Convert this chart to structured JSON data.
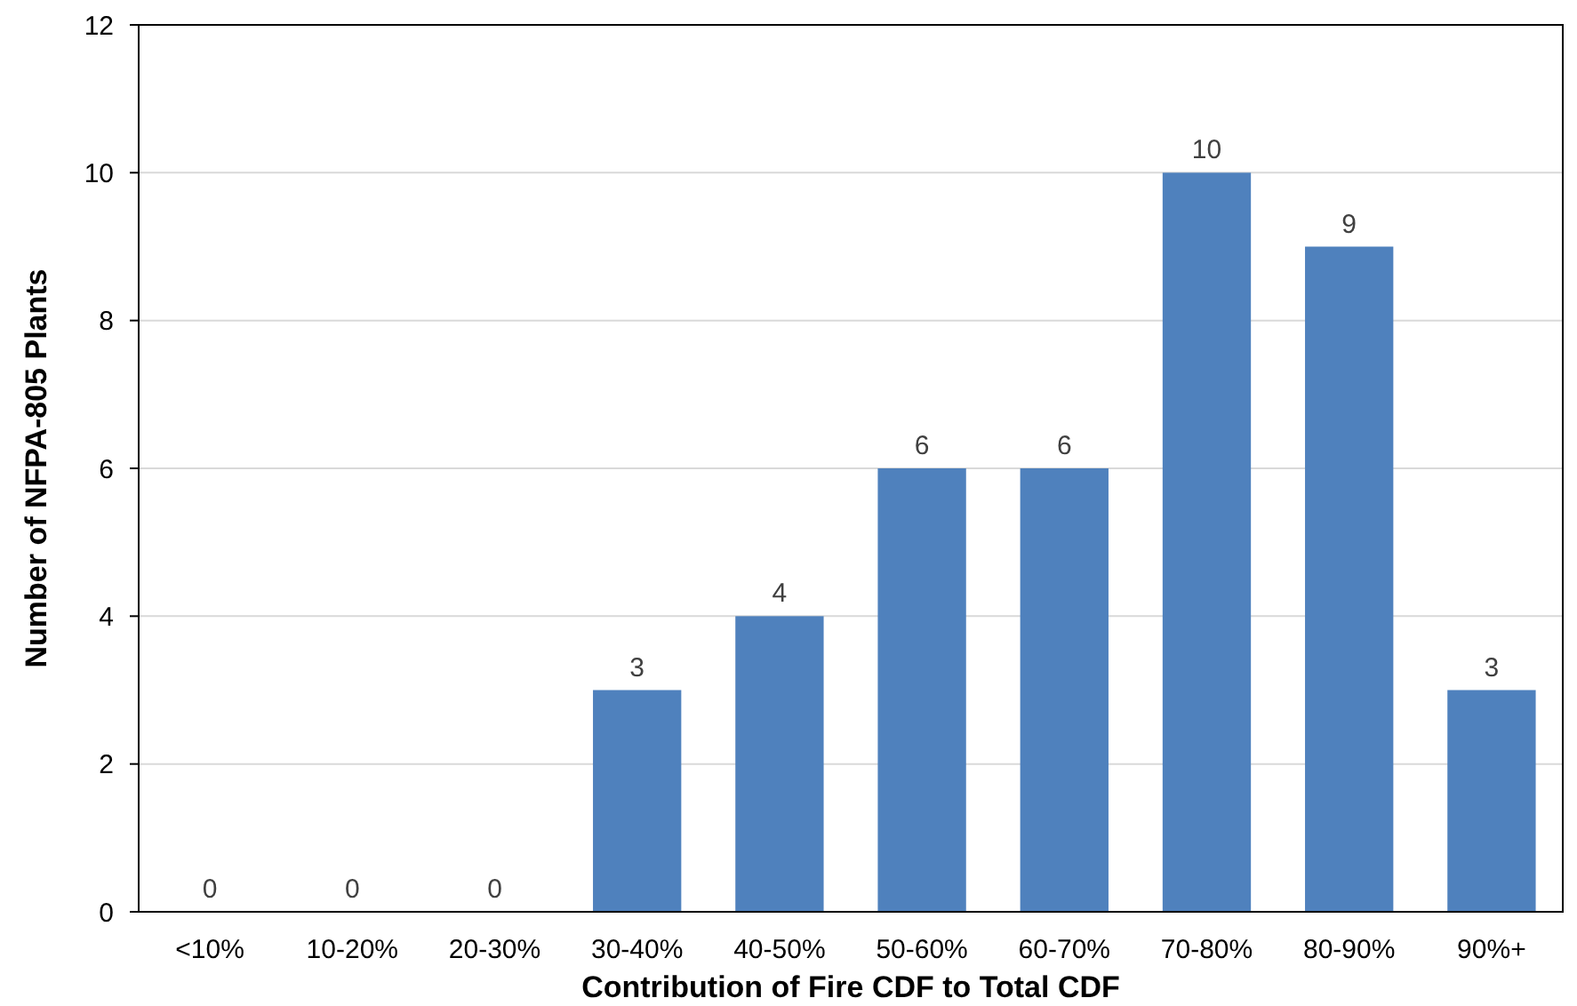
{
  "chart_data": {
    "type": "bar",
    "xlabel": "Contribution of Fire CDF to Total CDF",
    "ylabel": "Number of NFPA-805 Plants",
    "categories": [
      "<10%",
      "10-20%",
      "20-30%",
      "30-40%",
      "40-50%",
      "50-60%",
      "60-70%",
      "70-80%",
      "80-90%",
      "90%+"
    ],
    "values": [
      0,
      0,
      0,
      3,
      4,
      6,
      6,
      10,
      9,
      3
    ],
    "color": "#4f81bd",
    "ylim": [
      0,
      12
    ],
    "yticks": [
      0,
      2,
      4,
      6,
      8,
      10,
      12
    ],
    "grid": "y",
    "data_labels": true
  }
}
